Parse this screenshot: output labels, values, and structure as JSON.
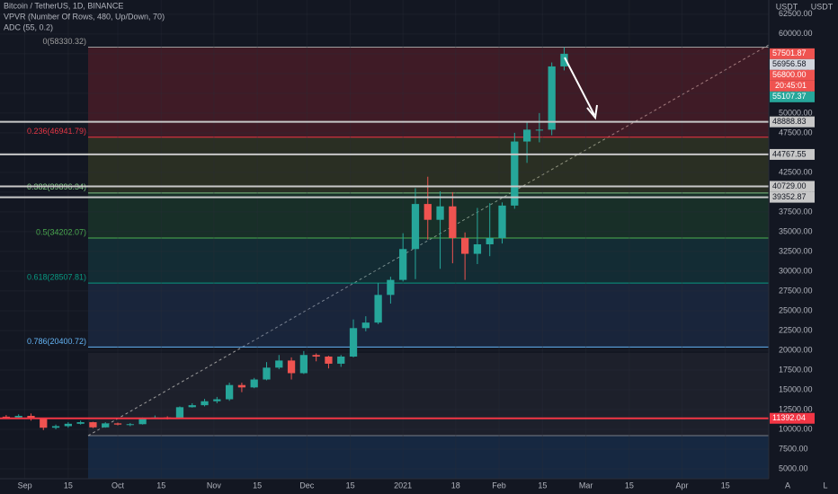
{
  "chart_data": {
    "type": "candlestick",
    "header": [
      "Bitcoin / TetherUS, 1D, BINANCE",
      "VPVR (Number Of Rows, 480, Up/Down, 70)",
      "ADC (55, 0.2)"
    ],
    "currency_labels": [
      "USDT",
      "USDT"
    ],
    "xlim": [
      -8,
      240
    ],
    "xticks": [
      {
        "value": 0,
        "label": "Sep"
      },
      {
        "value": 14,
        "label": "15"
      },
      {
        "value": 30,
        "label": "Oct"
      },
      {
        "value": 44,
        "label": "15"
      },
      {
        "value": 61,
        "label": "Nov"
      },
      {
        "value": 75,
        "label": "15"
      },
      {
        "value": 91,
        "label": "Dec"
      },
      {
        "value": 105,
        "label": "15"
      },
      {
        "value": 122,
        "label": "2021"
      },
      {
        "value": 139,
        "label": "18"
      },
      {
        "value": 153,
        "label": "Feb"
      },
      {
        "value": 167,
        "label": "15"
      },
      {
        "value": 181,
        "label": "Mar"
      },
      {
        "value": 195,
        "label": "15"
      },
      {
        "value": 212,
        "label": "Apr"
      },
      {
        "value": 226,
        "label": "15"
      }
    ],
    "ylim": [
      3750,
      64300
    ],
    "yticks": [
      {
        "value": 5000,
        "label": "5000.00"
      },
      {
        "value": 7500,
        "label": "7500.00"
      },
      {
        "value": 10000,
        "label": "10000.00"
      },
      {
        "value": 12500,
        "label": "12500.00"
      },
      {
        "value": 15000,
        "label": "15000.00"
      },
      {
        "value": 17500,
        "label": "17500.00"
      },
      {
        "value": 20000,
        "label": "20000.00"
      },
      {
        "value": 22500,
        "label": "22500.00"
      },
      {
        "value": 25000,
        "label": "25000.00"
      },
      {
        "value": 27500,
        "label": "27500.00"
      },
      {
        "value": 30000,
        "label": "30000.00"
      },
      {
        "value": 32500,
        "label": "32500.00"
      },
      {
        "value": 35000,
        "label": "35000.00"
      },
      {
        "value": 37500,
        "label": "37500.00"
      },
      {
        "value": 40000,
        "label": "40000.00"
      },
      {
        "value": 42500,
        "label": "42500.00"
      },
      {
        "value": 45000,
        "label": "45000.00"
      },
      {
        "value": 47500,
        "label": "47500.00"
      },
      {
        "value": 50000,
        "label": "50000.00"
      },
      {
        "value": 52500,
        "label": "52500.00"
      },
      {
        "value": 55000,
        "label": "55000.00"
      },
      {
        "value": 57500,
        "label": "57500.00"
      },
      {
        "value": 60000,
        "label": "60000.00"
      },
      {
        "value": 62500,
        "label": "62500.00"
      }
    ],
    "up_color": "#26a69a",
    "down_color": "#ef5350",
    "candles": {
      "x": [
        -6,
        -2,
        2,
        6,
        10,
        14,
        18,
        22,
        26,
        30,
        34,
        38,
        42,
        46,
        50,
        54,
        58,
        62,
        66,
        70,
        74,
        78,
        82,
        86,
        90,
        94,
        98,
        102,
        106,
        110,
        114,
        118,
        122,
        126,
        130,
        134,
        138,
        142,
        146,
        150,
        154,
        158,
        162,
        166,
        170,
        174
      ],
      "open": [
        11600,
        11500,
        11700,
        11400,
        10200,
        10400,
        10700,
        10900,
        10250,
        10750,
        10600,
        10650,
        11400,
        11500,
        11450,
        12800,
        13050,
        13550,
        13800,
        15600,
        15300,
        16300,
        17800,
        18700,
        17100,
        19400,
        19200,
        18300,
        19200,
        22800,
        23500,
        27000,
        28900,
        32800,
        38500,
        36500,
        38200,
        34200,
        32200,
        33400,
        34200,
        38300,
        46400,
        47900,
        47900,
        55900
      ],
      "high": [
        11800,
        11900,
        12000,
        11450,
        10600,
        10900,
        11100,
        10950,
        10900,
        10850,
        10800,
        11500,
        11750,
        11650,
        12900,
        13300,
        13850,
        14100,
        15900,
        15900,
        16500,
        18500,
        19400,
        19100,
        19900,
        19600,
        19300,
        19400,
        23900,
        24300,
        28500,
        29300,
        34800,
        40500,
        41950,
        40100,
        40000,
        34900,
        38000,
        38600,
        38700,
        47500,
        48900,
        50000,
        56400,
        58330
      ],
      "low": [
        11300,
        11400,
        11100,
        9900,
        10000,
        10200,
        10600,
        10150,
        10200,
        10500,
        10400,
        10600,
        11300,
        11250,
        11400,
        12750,
        12900,
        13300,
        13600,
        14700,
        15200,
        16200,
        17600,
        16300,
        17000,
        18600,
        17700,
        17900,
        19100,
        22400,
        23300,
        25900,
        28700,
        29000,
        34000,
        30300,
        31000,
        28900,
        30900,
        31900,
        33500,
        37900,
        43700,
        46300,
        47200,
        55400
      ],
      "close": [
        11500,
        11700,
        11400,
        10200,
        10400,
        10700,
        10900,
        10250,
        10750,
        10600,
        10650,
        11400,
        11500,
        11450,
        12800,
        13050,
        13550,
        13800,
        15600,
        15300,
        16300,
        17800,
        18700,
        17100,
        19400,
        19200,
        18300,
        19200,
        22800,
        23500,
        27000,
        28900,
        32800,
        38500,
        36500,
        38200,
        34200,
        32200,
        33400,
        34200,
        38300,
        46400,
        47900,
        47900,
        55900,
        57500
      ]
    },
    "fib_levels": [
      {
        "value": 58330.32,
        "label": "0(58330.32)",
        "color": "#9e9e9e",
        "zone": "rgba(178,40,51,0.28)"
      },
      {
        "value": 46941.79,
        "label": "0.236(46941.79)",
        "color": "#f23645",
        "zone": "rgba(110,120,40,0.25)"
      },
      {
        "value": 39896.34,
        "label": "0.382(39896.34)",
        "color": "#81c784",
        "zone": "rgba(40,120,60,0.25)"
      },
      {
        "value": 34202.07,
        "label": "0.5(34202.07)",
        "color": "#4caf50",
        "zone": "rgba(20,100,100,0.28)"
      },
      {
        "value": 28507.81,
        "label": "0.618(28507.81)",
        "color": "#089981",
        "zone": "rgba(40,70,120,0.3)"
      },
      {
        "value": 20400.72,
        "label": "0.786(20400.72)",
        "color": "#64b5f6",
        "zone": "rgba(60,60,70,0.25)"
      }
    ],
    "levels": [
      {
        "value": 48888.83,
        "color": "#c8c8c8"
      },
      {
        "value": 44767.55,
        "color": "#c8c8c8"
      },
      {
        "value": 40729,
        "label": "40729.00",
        "color": "#c8c8c8"
      },
      {
        "value": 39352.87,
        "color": "#c8c8c8"
      },
      {
        "value": 11392.04,
        "color": "#f23645"
      }
    ],
    "price_labels": [
      {
        "value": 57501.87,
        "color": "#ef5350",
        "text_color": "#ffffff"
      },
      {
        "value": 56956.58,
        "color": "#d1d4dc",
        "text_color": "#131722"
      },
      {
        "value": 56800,
        "label": "56800.00",
        "color": "#ef5350",
        "text_color": "#ffffff"
      },
      {
        "value": 55107.37,
        "color": "#26a69a",
        "text_color": "#ffffff"
      }
    ],
    "countdown": "20:45:01",
    "buttons": [
      "A",
      "L"
    ]
  }
}
